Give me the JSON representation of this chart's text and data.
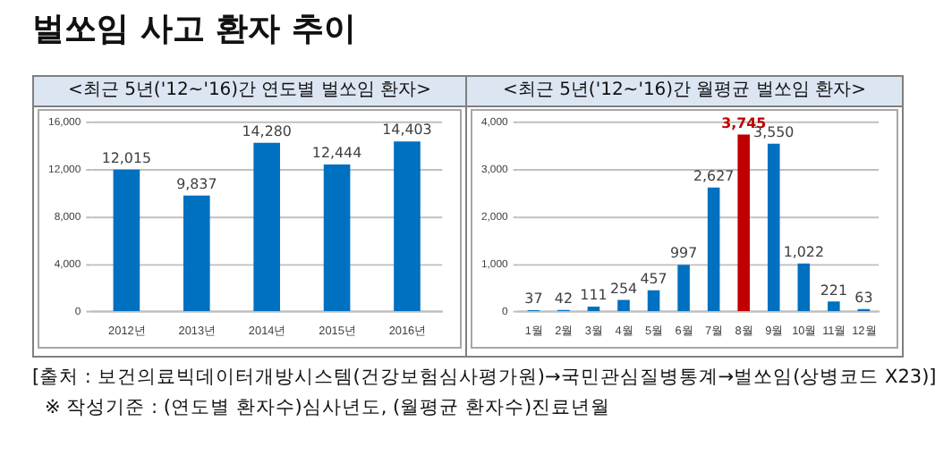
{
  "chart_data": [
    {
      "type": "bar",
      "title": "벌쏘임 사고 환자 추이",
      "subtitle": "<최근 5년('12~'16)간 연도별 벌쏘임 환자>",
      "categories": [
        "2012년",
        "2013년",
        "2014년",
        "2015년",
        "2016년"
      ],
      "values": [
        12015,
        9837,
        14280,
        12444,
        14403
      ],
      "value_labels": [
        "12,015",
        "9,837",
        "14,280",
        "12,444",
        "14,403"
      ],
      "color": "#0070c0",
      "ylim": [
        0,
        16000
      ],
      "yticks": [
        0,
        {
          "value": 4000,
          "label": "4,000"
        },
        {
          "value": 8000,
          "label": "8,000"
        },
        {
          "value": 12000,
          "label": "12,000"
        },
        {
          "value": 16000,
          "label": "16,000"
        }
      ],
      "grid": "y",
      "annotations": [
        "[출처 : 보건의료빅데이터개방시스템(건강보험심사평가원)→국민관심질병통계→벌쏘임(상병코드 X23)]",
        "※ 작성기준 : (연도별  환자수)심사년도, (월평균  환자수)진료년월"
      ]
    },
    {
      "type": "bar",
      "subtitle": "<최근 5년('12~'16)간 월평균 벌쏘임 환자>",
      "categories": [
        "1월",
        "2월",
        "3월",
        "4월",
        "5월",
        "6월",
        "7월",
        "8월",
        "9월",
        "10월",
        "11월",
        "12월"
      ],
      "values": [
        37,
        42,
        111,
        254,
        457,
        997,
        2627,
        3745,
        3550,
        1022,
        221,
        63
      ],
      "value_labels": [
        "37",
        "42",
        "111",
        "254",
        "457",
        "997",
        "2,627",
        "3,745",
        "3,550",
        "1,022",
        "221",
        "63"
      ],
      "color": "#0070c0",
      "colors": [
        "#0070c0",
        "#0070c0",
        "#0070c0",
        "#0070c0",
        "#0070c0",
        "#0070c0",
        "#0070c0",
        "#c00000",
        "#0070c0",
        "#0070c0",
        "#0070c0",
        "#0070c0"
      ],
      "ylim": [
        0,
        4000
      ],
      "yticks": [
        0,
        {
          "value": 1000,
          "label": "1,000"
        },
        {
          "value": 2000,
          "label": "2,000"
        },
        {
          "value": 3000,
          "label": "3,000"
        },
        {
          "value": 4000,
          "label": "4,000"
        }
      ],
      "grid": "y"
    }
  ]
}
